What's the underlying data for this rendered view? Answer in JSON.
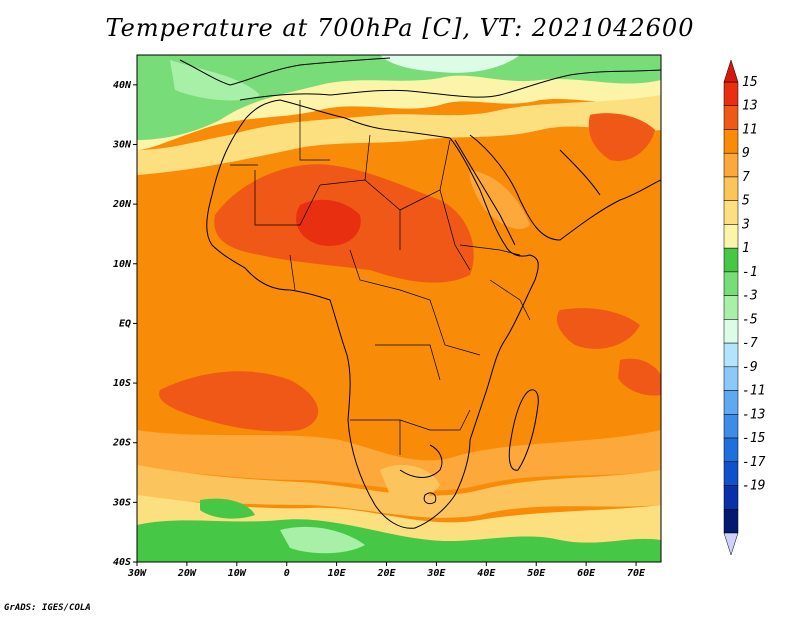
{
  "title": "Temperature at 700hPa [C], VT: 2021042600",
  "credit": "GrADS: IGES/COLA",
  "map": {
    "lon_range": [
      -30,
      75
    ],
    "lat_range": [
      -40,
      45
    ],
    "lon_ticks": [
      {
        "value": -30,
        "label": "30W"
      },
      {
        "value": -20,
        "label": "20W"
      },
      {
        "value": -10,
        "label": "10W"
      },
      {
        "value": 0,
        "label": "0"
      },
      {
        "value": 10,
        "label": "10E"
      },
      {
        "value": 20,
        "label": "20E"
      },
      {
        "value": 30,
        "label": "30E"
      },
      {
        "value": 40,
        "label": "40E"
      },
      {
        "value": 50,
        "label": "50E"
      },
      {
        "value": 60,
        "label": "60E"
      },
      {
        "value": 70,
        "label": "70E"
      }
    ],
    "lat_ticks": [
      {
        "value": 40,
        "label": "40N"
      },
      {
        "value": 30,
        "label": "30N"
      },
      {
        "value": 20,
        "label": "20N"
      },
      {
        "value": 10,
        "label": "10N"
      },
      {
        "value": 0,
        "label": "EQ"
      },
      {
        "value": -10,
        "label": "10S"
      },
      {
        "value": -20,
        "label": "20S"
      },
      {
        "value": -30,
        "label": "30S"
      },
      {
        "value": -40,
        "label": "40S"
      }
    ]
  },
  "colorbar": {
    "labels": [
      "15",
      "13",
      "11",
      "9",
      "7",
      "5",
      "3",
      "1",
      "-1",
      "-3",
      "-5",
      "-7",
      "-9",
      "-11",
      "-13",
      "-15",
      "-17",
      "-19"
    ],
    "colors": [
      "#e83010",
      "#f05818",
      "#f88c08",
      "#fca83a",
      "#fcc45c",
      "#fce080",
      "#fcf4a8",
      "#46c846",
      "#78dc78",
      "#a8f0a8",
      "#dcfce8",
      "#b4e4fc",
      "#8cc8f8",
      "#60a8f0",
      "#3c8ce8",
      "#2070dc",
      "#1050c8",
      "#0830a8",
      "#041a70"
    ],
    "top_arrow_color": "#d81808",
    "bottom_arrow_color": "#d0d0fc"
  }
}
